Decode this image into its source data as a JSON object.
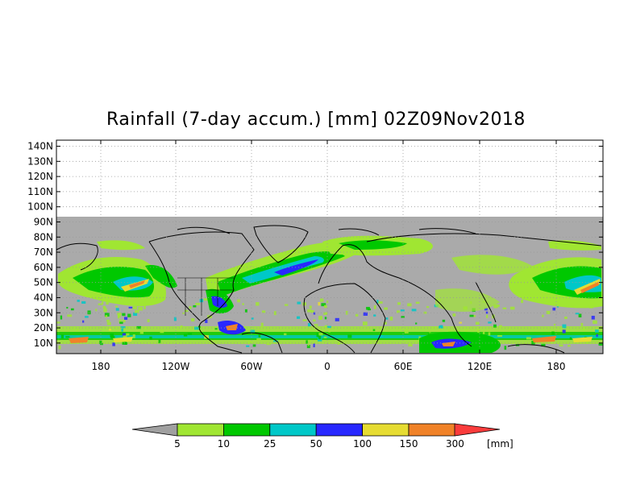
{
  "title": "Rainfall (7-day accum.) [mm] 02Z09Nov2018",
  "map": {
    "projection": "cylindrical",
    "lat_labels": [
      "140N",
      "130N",
      "120N",
      "110N",
      "100N",
      "90N",
      "80N",
      "70N",
      "60N",
      "50N",
      "40N",
      "30N",
      "20N",
      "10N"
    ],
    "lon_labels": [
      "180",
      "120W",
      "60W",
      "0",
      "60E",
      "120E",
      "180"
    ],
    "grid": "dotted",
    "no_data_color": "#aaaaaa",
    "background_color": "#ffffff"
  },
  "colorbar": {
    "unit": "[mm]",
    "ticks": [
      "5",
      "10",
      "25",
      "50",
      "100",
      "150",
      "300"
    ],
    "below_color": "#a0a0a0",
    "colors": [
      "#a0e632",
      "#00c800",
      "#00c8c8",
      "#2828ff",
      "#e6dc32",
      "#f08228",
      "#fa3c3c"
    ]
  }
}
